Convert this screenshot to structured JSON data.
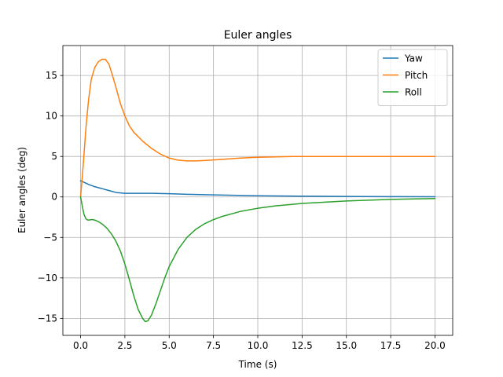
{
  "chart_data": {
    "type": "line",
    "title": "Euler angles",
    "xlabel": "Time (s)",
    "ylabel": "Euler angles (deg)",
    "xlim": [
      -1.0,
      21.0
    ],
    "ylim": [
      -17.1,
      18.7
    ],
    "xticks": [
      0,
      2.5,
      5,
      7.5,
      10,
      12.5,
      15,
      17.5,
      20
    ],
    "xtick_labels": [
      "0.0",
      "2.5",
      "5.0",
      "7.5",
      "10.0",
      "12.5",
      "15.0",
      "17.5",
      "20.0"
    ],
    "yticks": [
      -15,
      -10,
      -5,
      0,
      5,
      10,
      15
    ],
    "ytick_labels": [
      "−15",
      "−10",
      "−5",
      "0",
      "5",
      "10",
      "15"
    ],
    "grid": true,
    "legend_position": "top-right",
    "series": [
      {
        "name": "Yaw",
        "color": "#1f77b4",
        "x": [
          0,
          0.25,
          0.5,
          0.75,
          1.0,
          1.25,
          1.5,
          1.75,
          2.0,
          2.5,
          3,
          4,
          5,
          6,
          7.5,
          10,
          12.5,
          15,
          17.5,
          20
        ],
        "y": [
          2.0,
          1.75,
          1.5,
          1.3,
          1.15,
          1.0,
          0.85,
          0.7,
          0.55,
          0.45,
          0.45,
          0.45,
          0.4,
          0.33,
          0.25,
          0.15,
          0.1,
          0.06,
          0.04,
          0.03
        ]
      },
      {
        "name": "Pitch",
        "color": "#ff7f0e",
        "x": [
          0,
          0.15,
          0.3,
          0.45,
          0.6,
          0.8,
          1.0,
          1.2,
          1.4,
          1.6,
          1.8,
          2.0,
          2.25,
          2.5,
          2.75,
          3.0,
          3.5,
          4.0,
          4.5,
          5.0,
          5.5,
          6.0,
          6.5,
          7.0,
          8.0,
          9.0,
          10.0,
          11.0,
          12.0,
          13.0,
          15.0,
          17.5,
          20.0
        ],
        "y": [
          0,
          4.0,
          8.5,
          12.0,
          14.5,
          16.0,
          16.7,
          17.0,
          17.0,
          16.4,
          15.0,
          13.5,
          11.5,
          10.0,
          8.8,
          8.0,
          6.9,
          6.0,
          5.3,
          4.8,
          4.55,
          4.45,
          4.45,
          4.5,
          4.65,
          4.8,
          4.9,
          4.95,
          5.0,
          5.0,
          5.0,
          5.0,
          5.0
        ]
      },
      {
        "name": "Roll",
        "color": "#2ca02c",
        "x": [
          0,
          0.1,
          0.2,
          0.3,
          0.4,
          0.5,
          0.6,
          0.7,
          0.85,
          1.0,
          1.25,
          1.5,
          1.75,
          2.0,
          2.25,
          2.5,
          2.75,
          3.0,
          3.25,
          3.5,
          3.65,
          3.8,
          4.0,
          4.25,
          4.5,
          4.75,
          5.0,
          5.5,
          6.0,
          6.5,
          7.0,
          7.5,
          8.0,
          9.0,
          10.0,
          11.0,
          12.5,
          15.0,
          17.5,
          20.0
        ],
        "y": [
          0,
          -1.2,
          -2.2,
          -2.7,
          -2.85,
          -2.85,
          -2.8,
          -2.8,
          -2.9,
          -3.05,
          -3.4,
          -3.9,
          -4.6,
          -5.5,
          -6.7,
          -8.3,
          -10.2,
          -12.2,
          -13.9,
          -15.0,
          -15.4,
          -15.3,
          -14.6,
          -13.2,
          -11.6,
          -10.0,
          -8.6,
          -6.5,
          -5.0,
          -4.0,
          -3.3,
          -2.8,
          -2.4,
          -1.8,
          -1.4,
          -1.1,
          -0.8,
          -0.5,
          -0.3,
          -0.2
        ]
      }
    ]
  }
}
